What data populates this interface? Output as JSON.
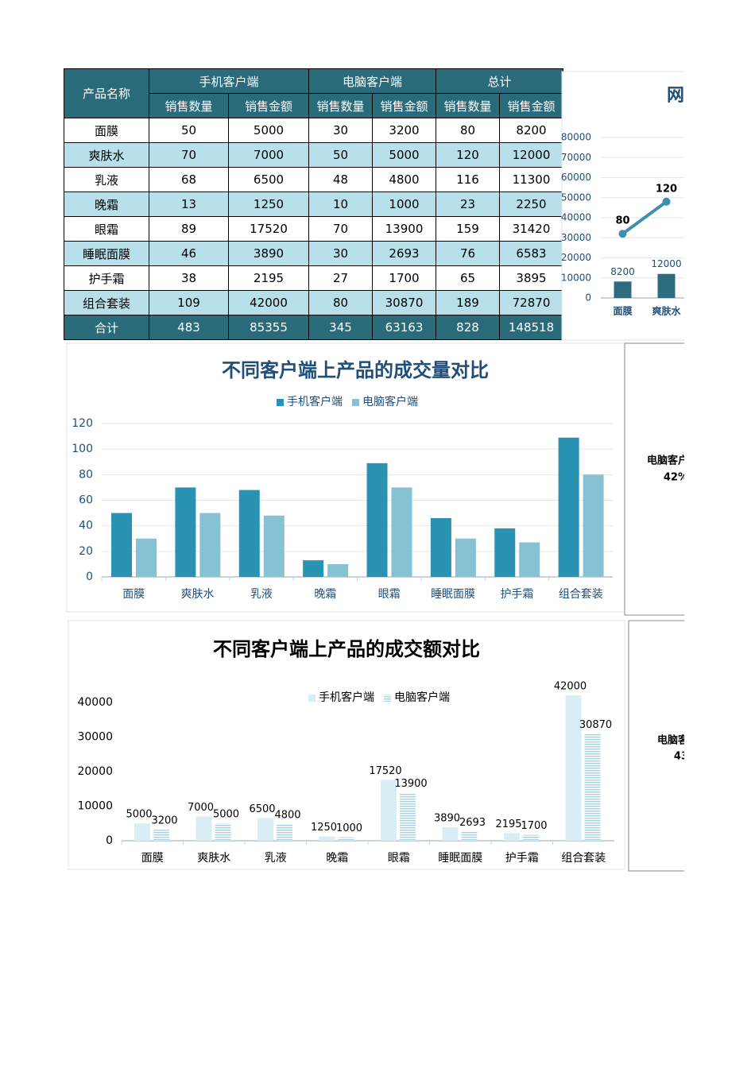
{
  "table": {
    "groups": [
      "产品名称",
      "手机客户端",
      "电脑客户端",
      "总计"
    ],
    "subheaders": [
      "销售数量",
      "销售金额",
      "销售数量",
      "销售金额",
      "销售数量",
      "销售金额"
    ],
    "rows": [
      [
        "面膜",
        50,
        5000,
        30,
        3200,
        80,
        8200
      ],
      [
        "爽肤水",
        70,
        7000,
        50,
        5000,
        120,
        12000
      ],
      [
        "乳液",
        68,
        6500,
        48,
        4800,
        116,
        11300
      ],
      [
        "晚霜",
        13,
        1250,
        10,
        1000,
        23,
        2250
      ],
      [
        "眼霜",
        89,
        17520,
        70,
        13900,
        159,
        31420
      ],
      [
        "睡眠面膜",
        46,
        3890,
        30,
        2693,
        76,
        6583
      ],
      [
        "护手霜",
        38,
        2195,
        27,
        1700,
        65,
        3895
      ],
      [
        "组合套装",
        109,
        42000,
        80,
        30870,
        189,
        72870
      ],
      [
        "合计",
        483,
        85355,
        345,
        63163,
        828,
        148518
      ]
    ]
  },
  "charts": [
    {
      "type": "combo",
      "title": "网",
      "categories": [
        "面膜",
        "爽肤水"
      ],
      "ylim": [
        0,
        80000
      ],
      "yticks": [
        0,
        10000,
        20000,
        30000,
        40000,
        50000,
        60000,
        70000,
        80000
      ],
      "y2lim": [
        0,
        200
      ],
      "grid": true,
      "series": [
        {
          "type": "bar",
          "color": "#2c6b80",
          "values": [
            8200,
            12000
          ]
        },
        {
          "type": "line",
          "axis": "y2",
          "color": "#3e8fae",
          "values": [
            80,
            120
          ]
        }
      ]
    },
    {
      "type": "bar",
      "title": "不同客户端上产品的成交量对比",
      "categories": [
        "面膜",
        "爽肤水",
        "乳液",
        "晚霜",
        "眼霜",
        "睡眠面膜",
        "护手霜",
        "组合套装"
      ],
      "ylim": [
        0,
        120
      ],
      "yticks": [
        0,
        20,
        40,
        60,
        80,
        100,
        120
      ],
      "grid": true,
      "legend": "top",
      "series": [
        {
          "name": "手机客户端",
          "color": "#2a93b3",
          "values": [
            50,
            70,
            68,
            13,
            89,
            46,
            38,
            109
          ]
        },
        {
          "name": "电脑客户端",
          "color": "#86c2d4",
          "values": [
            30,
            50,
            48,
            10,
            70,
            30,
            27,
            80
          ]
        }
      ]
    },
    {
      "type": "bar",
      "title": "不同客户端上产品的成交额对比",
      "categories": [
        "面膜",
        "爽肤水",
        "乳液",
        "晚霜",
        "眼霜",
        "睡眠面膜",
        "护手霜",
        "组合套装"
      ],
      "ylim": [
        0,
        45000
      ],
      "yticks": [
        0,
        10000,
        20000,
        30000,
        40000
      ],
      "grid": false,
      "legend": "top",
      "data_labels": true,
      "series": [
        {
          "name": "手机客户端",
          "color": "#d9edf4",
          "values": [
            5000,
            7000,
            6500,
            1250,
            17520,
            3890,
            2195,
            42000
          ]
        },
        {
          "name": "电脑客户端",
          "color": "#a9d3e2",
          "values": [
            3200,
            5000,
            4800,
            1000,
            13900,
            2693,
            1700,
            30870
          ]
        }
      ]
    },
    {
      "type": "pie",
      "categories": [
        "电脑客户"
      ],
      "values": [
        42
      ],
      "value_labels": [
        "42%"
      ]
    },
    {
      "type": "pie",
      "categories": [
        "电脑客"
      ],
      "values": [
        43
      ]
    }
  ]
}
